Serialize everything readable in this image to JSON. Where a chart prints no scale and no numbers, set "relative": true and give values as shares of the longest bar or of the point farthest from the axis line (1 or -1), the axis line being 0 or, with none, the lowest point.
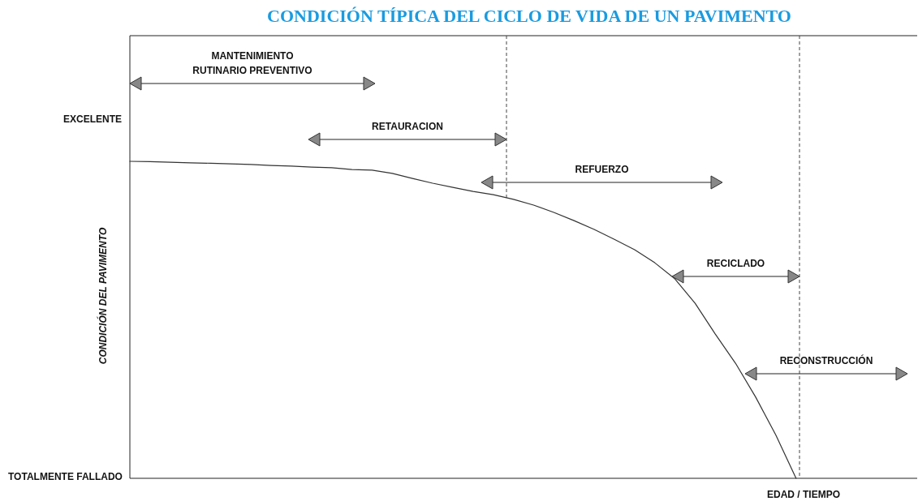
{
  "chart_data": {
    "type": "line",
    "title": "CONDICIÓN TÍPICA DEL CICLO DE VIDA DE UN PAVIMENTO",
    "xlabel": "EDAD / TIEMPO",
    "ylabel": "CONDICIÓN DEL PAVIMENTO",
    "relative": true,
    "color": "#333333",
    "categories": [
      null,
      null,
      null,
      null,
      null,
      null,
      null,
      null,
      null,
      null,
      null,
      null,
      null,
      null,
      null,
      null,
      null,
      null,
      null,
      null,
      null,
      null,
      null,
      null,
      null,
      null,
      null,
      null,
      null,
      null,
      null,
      null,
      null,
      null,
      null,
      null,
      null,
      null,
      null,
      null
    ],
    "values": [
      1.0,
      0.999,
      0.997,
      0.995,
      0.994,
      0.992,
      0.99,
      0.987,
      0.985,
      0.982,
      0.98,
      0.974,
      0.972,
      0.962,
      0.946,
      0.931,
      0.918,
      0.905,
      0.895,
      0.88,
      0.862,
      0.839,
      0.813,
      0.785,
      0.754,
      0.721,
      0.68,
      0.629,
      0.552,
      0.455,
      0.363,
      0.256,
      0.136,
      0.0,
      null,
      null,
      null,
      null,
      null,
      null
    ],
    "annotations": [
      "MANTENIMIENTO RUTINARIO PREVENTIVO",
      "RETAURACION",
      "REFUERZO",
      "RECICLADO",
      "RECONSTRUCCIÓN",
      "EXCELENTE",
      "TOTALMENTE FALLADO"
    ]
  }
}
